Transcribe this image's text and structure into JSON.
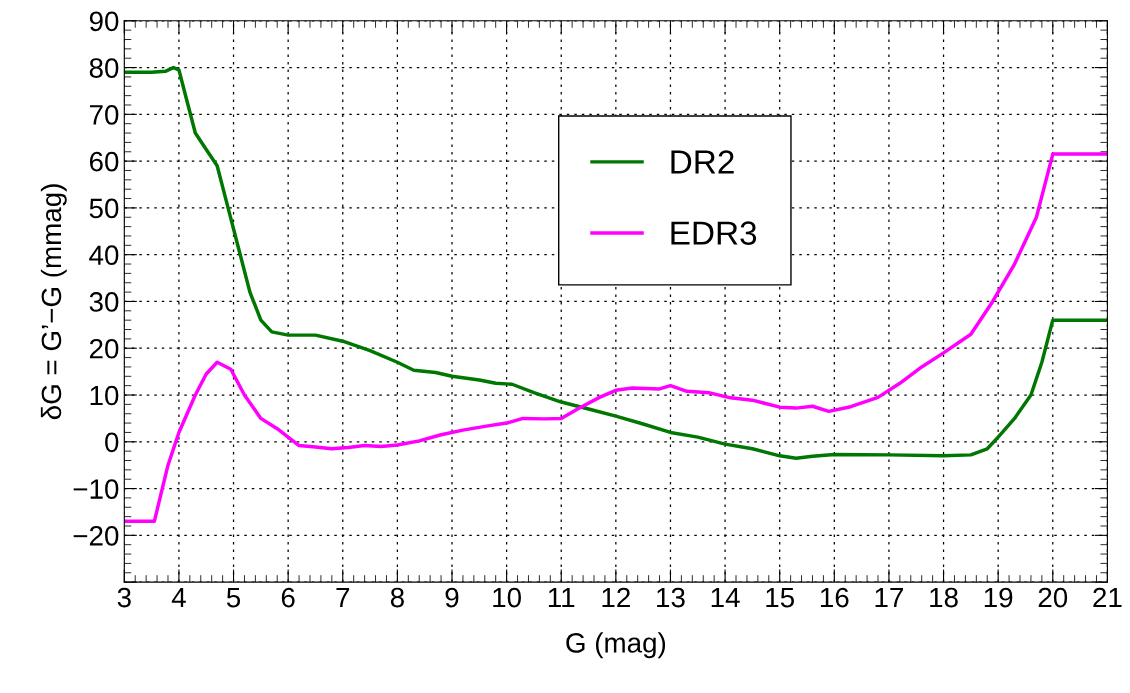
{
  "chart_data": {
    "type": "line",
    "xlabel": "G (mag)",
    "ylabel": "δG = G’−G (mmag)",
    "xlim": [
      3,
      21
    ],
    "xticks": [
      3,
      4,
      5,
      6,
      7,
      8,
      9,
      10,
      11,
      12,
      13,
      14,
      15,
      16,
      17,
      18,
      19,
      20,
      21
    ],
    "ylim": [
      -30,
      90
    ],
    "yticks": [
      {
        "value": -30,
        "label": null
      },
      {
        "value": -20,
        "label": "−20"
      },
      {
        "value": -10,
        "label": "−10"
      },
      0,
      10,
      20,
      30,
      40,
      50,
      60,
      70,
      80,
      90
    ],
    "grid": true,
    "legend": "top",
    "line_style": "solid",
    "marker": "none",
    "series": [
      {
        "name": "DR2",
        "color": "#007700",
        "x": [
          3,
          3.5,
          3.75,
          3.9,
          4.0,
          4.1,
          4.3,
          4.5,
          4.7,
          4.9,
          5.1,
          5.3,
          5.5,
          5.7,
          6.0,
          6.5,
          7,
          7.5,
          8,
          8.3,
          8.7,
          9,
          9.5,
          9.8,
          10.1,
          10.5,
          11,
          11.5,
          12,
          12.5,
          13,
          13.5,
          14,
          14.5,
          15,
          15.3,
          15.6,
          16,
          17,
          18,
          18.5,
          18.8,
          19,
          19.3,
          19.6,
          19.8,
          20,
          21
        ],
        "values": [
          79,
          79,
          79.2,
          80,
          79.5,
          75,
          66,
          62.5,
          59,
          50,
          41,
          32,
          26,
          23.5,
          22.8,
          22.8,
          21.5,
          19.5,
          17,
          15.3,
          14.8,
          14,
          13.2,
          12.5,
          12.3,
          10.5,
          8.5,
          7,
          5.5,
          3.8,
          2,
          1,
          -0.5,
          -1.5,
          -3,
          -3.5,
          -3.1,
          -2.7,
          -2.8,
          -3,
          -2.8,
          -1.5,
          1,
          5,
          10,
          17,
          26,
          26
        ]
      },
      {
        "name": "EDR3",
        "color": "#ff00ff",
        "x": [
          3,
          3.55,
          3.8,
          4.0,
          4.3,
          4.5,
          4.7,
          4.95,
          5.2,
          5.5,
          5.8,
          6.0,
          6.2,
          6.5,
          6.8,
          7.1,
          7.4,
          7.7,
          8.0,
          8.4,
          8.8,
          9.2,
          9.6,
          10,
          10.3,
          10.7,
          11,
          11.3,
          11.7,
          12,
          12.3,
          12.8,
          13,
          13.3,
          13.7,
          14.1,
          14.5,
          15,
          15.3,
          15.6,
          15.9,
          16.3,
          16.8,
          17.2,
          17.6,
          18,
          18.5,
          18.9,
          19.3,
          19.7,
          20,
          21
        ],
        "values": [
          -17,
          -17,
          -5,
          2,
          10,
          14.5,
          17,
          15.5,
          10,
          5,
          2.8,
          1,
          -0.8,
          -1.1,
          -1.5,
          -1.2,
          -0.8,
          -1,
          -0.7,
          0.2,
          1.5,
          2.5,
          3.3,
          4,
          5,
          4.9,
          5,
          7,
          9.5,
          11,
          11.5,
          11.3,
          12,
          10.8,
          10.5,
          9.4,
          8.9,
          7.4,
          7.2,
          7.6,
          6.5,
          7.5,
          9.5,
          12.5,
          16,
          19,
          23,
          30,
          38,
          48,
          61.5,
          61.5
        ]
      }
    ]
  }
}
